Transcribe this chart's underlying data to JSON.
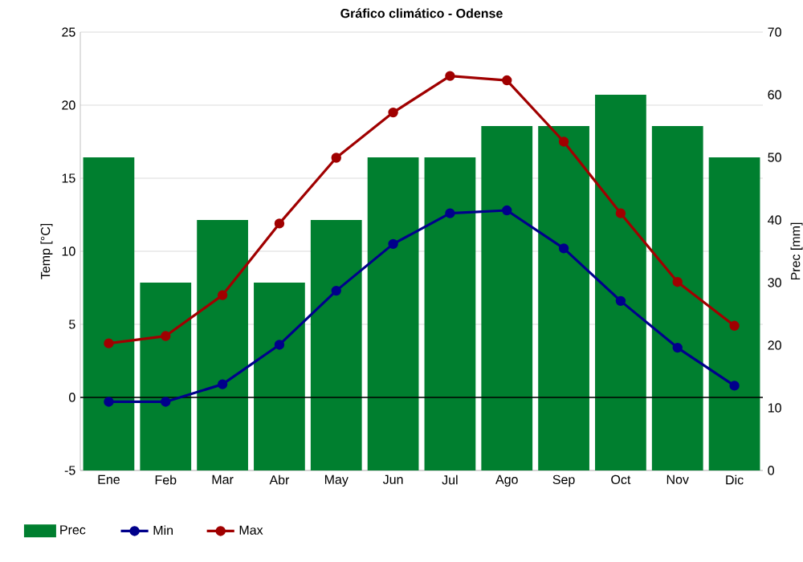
{
  "chart_data": {
    "type": "line",
    "title": "Gráfico climático - Odense",
    "ylabel": "Temp [°C]",
    "y2label": "Prec [mm]",
    "categories": [
      "Ene",
      "Feb",
      "Mar",
      "Abr",
      "May",
      "Jun",
      "Jul",
      "Ago",
      "Sep",
      "Oct",
      "Nov",
      "Dic"
    ],
    "series": [
      {
        "name": "Prec",
        "type": "bar",
        "axis": "y2",
        "color": "#007f2f",
        "values": [
          50,
          30,
          40,
          30,
          40,
          50,
          50,
          55,
          55,
          60,
          55,
          50
        ]
      },
      {
        "name": "Min",
        "color": "#00008b",
        "values": [
          -0.3,
          -0.3,
          0.9,
          3.6,
          7.3,
          10.5,
          12.6,
          12.8,
          10.2,
          6.6,
          3.4,
          0.8
        ]
      },
      {
        "name": "Max",
        "color": "#a00000",
        "values": [
          3.7,
          4.2,
          7.0,
          11.9,
          16.4,
          19.5,
          22.0,
          21.7,
          17.5,
          12.6,
          7.9,
          4.9
        ]
      }
    ],
    "ylim": [
      -5,
      25
    ],
    "yticks": [
      -5,
      0,
      5,
      10,
      15,
      20,
      25
    ],
    "y2lim": [
      0,
      70
    ],
    "y2ticks": [
      0,
      10,
      20,
      30,
      40,
      50,
      60,
      70
    ],
    "ref_lines": [
      {
        "axis": "y",
        "value": 0,
        "color": "#000000"
      }
    ],
    "grid": "y",
    "legend": "bottom",
    "marker": "circle",
    "line_style": "solid"
  }
}
